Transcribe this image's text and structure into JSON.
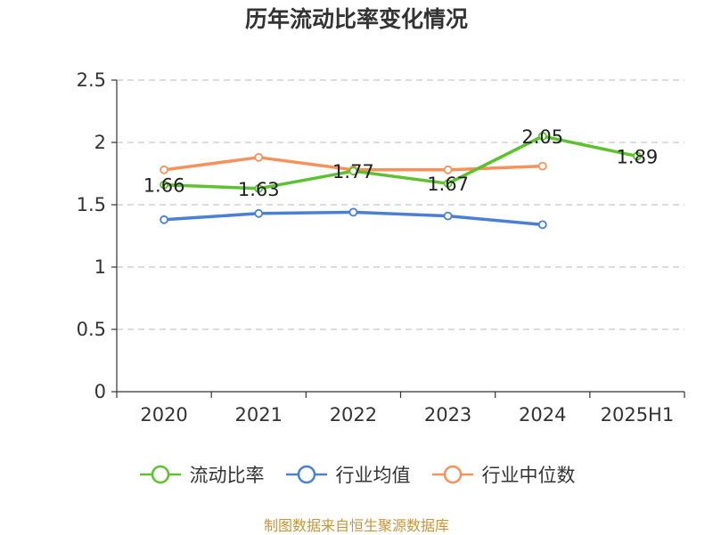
{
  "chart_data": {
    "type": "line",
    "title": "历年流动比率变化情况",
    "categories": [
      "2020",
      "2021",
      "2022",
      "2023",
      "2024",
      "2025H1"
    ],
    "y_ticks": [
      "0",
      "0.5",
      "1",
      "1.5",
      "2",
      "2.5"
    ],
    "ylim": [
      0,
      2.5
    ],
    "grid": true,
    "legend_position": "bottom",
    "series": [
      {
        "name": "流动比率",
        "color": "#5cc22e",
        "values": [
          1.66,
          1.63,
          1.77,
          1.67,
          2.05,
          1.89
        ],
        "labels": [
          "1.66",
          "1.63",
          "1.77",
          "1.67",
          "2.05",
          "1.89"
        ]
      },
      {
        "name": "行业均值",
        "color": "#4a7fd6",
        "values": [
          1.38,
          1.43,
          1.44,
          1.41,
          1.34,
          null
        ]
      },
      {
        "name": "行业中位数",
        "color": "#f7915a",
        "values": [
          1.78,
          1.88,
          1.78,
          1.78,
          1.81,
          null
        ]
      }
    ]
  },
  "source": "制图数据来自恒生聚源数据库"
}
